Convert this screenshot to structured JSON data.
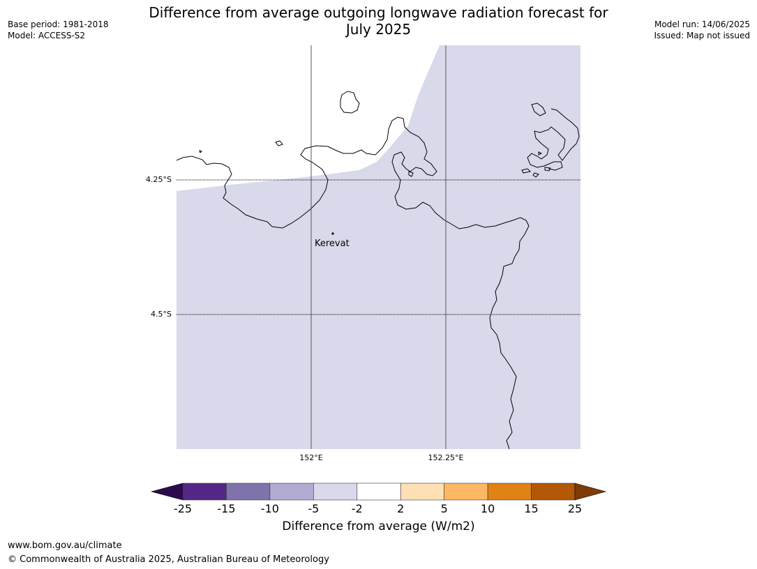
{
  "title": {
    "line1": "Difference from average outgoing longwave radiation forecast for",
    "line2": "July 2025"
  },
  "meta_left": {
    "base_period": "Base period: 1981-2018",
    "model": "Model: ACCESS-S2"
  },
  "meta_right": {
    "model_run": "Model run: 14/06/2025",
    "issued": "Issued: Map not issued"
  },
  "map": {
    "latitude_labels": [
      "4.25°S",
      "4.5°S"
    ],
    "longitude_labels": [
      "152°E",
      "152.25°E"
    ],
    "place": {
      "name": "Kerevat"
    },
    "fill_color": "#d8d9ea",
    "fill_category": "-5 to -2"
  },
  "colorbar": {
    "ticks": [
      "-25",
      "-15",
      "-10",
      "-5",
      "-2",
      "2",
      "5",
      "10",
      "15",
      "25"
    ],
    "colors": {
      "below_min": "#2d0a4e",
      "bins": [
        "#542787",
        "#8073ac",
        "#b2abd2",
        "#d8daeb",
        "#ffffff",
        "#fee0b6",
        "#fdb863",
        "#e08214",
        "#b35806"
      ],
      "above_max": "#7f3b08"
    },
    "label": "Difference from average (W/m2)"
  },
  "footer": {
    "url": "www.bom.gov.au/climate",
    "copyright": "© Commonwealth of Australia 2025, Australian Bureau of Meteorology"
  }
}
